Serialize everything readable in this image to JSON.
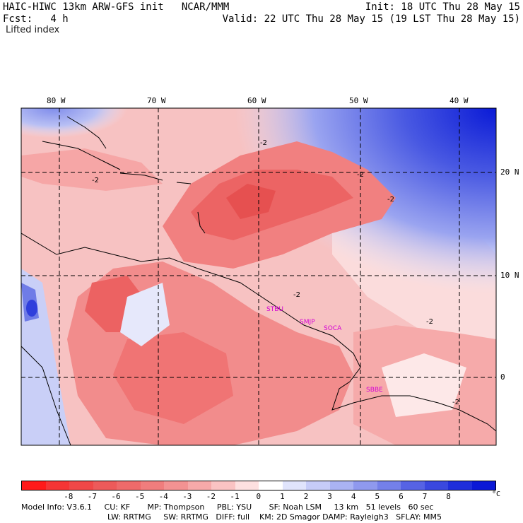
{
  "header": {
    "title": "HAIC-HIWC 13km ARW-GFS init   NCAR/MMM",
    "forecast": "Fcst:   4 h",
    "field": "Lifted index",
    "init": "Init: 18 UTC Thu 28 May 15",
    "valid": "Valid: 22 UTC Thu 28 May 15 (19 LST Thu 28 May 15)"
  },
  "map": {
    "longitude_labels": [
      "80 W",
      "70 W",
      "60 W",
      "50 W",
      "40 W"
    ],
    "latitude_labels": [
      "20 N",
      "10 N",
      "0"
    ],
    "stations": [
      "STBU",
      "SMJP",
      "SOCA",
      "SBBE"
    ],
    "contour_labels": [
      "-2",
      "-2",
      "-2",
      "-2",
      "-2",
      "-2",
      "-2"
    ]
  },
  "colorbar": {
    "ticks": [
      "-8",
      "-7",
      "-6",
      "-5",
      "-4",
      "-3",
      "-2",
      "-1",
      "0",
      "1",
      "2",
      "3",
      "4",
      "5",
      "6",
      "7",
      "8"
    ],
    "unit": "°C",
    "colors": [
      "#ff1a1a",
      "#f53535",
      "#f04848",
      "#ed5a5a",
      "#ee6a6a",
      "#f07d7d",
      "#f39292",
      "#f6a9a9",
      "#fac3c3",
      "#fde0e0",
      "#ffffff",
      "#e0e4fc",
      "#c6ccf8",
      "#aab3f3",
      "#8f99ee",
      "#7480e9",
      "#5663e4",
      "#3a48df",
      "#1f2edb",
      "#0b18d6"
    ]
  },
  "footer": {
    "line1": "Model Info: V3.6.1     CU: KF       MP: Thompson     PBL: YSU       SF: Noah LSM     13 km   51 levels   60 sec",
    "line2": "LW: RRTMG     SW: RRTMG   DIFF: full    KM: 2D Smagor DAMP: Rayleigh3   SFLAY: MM5"
  }
}
